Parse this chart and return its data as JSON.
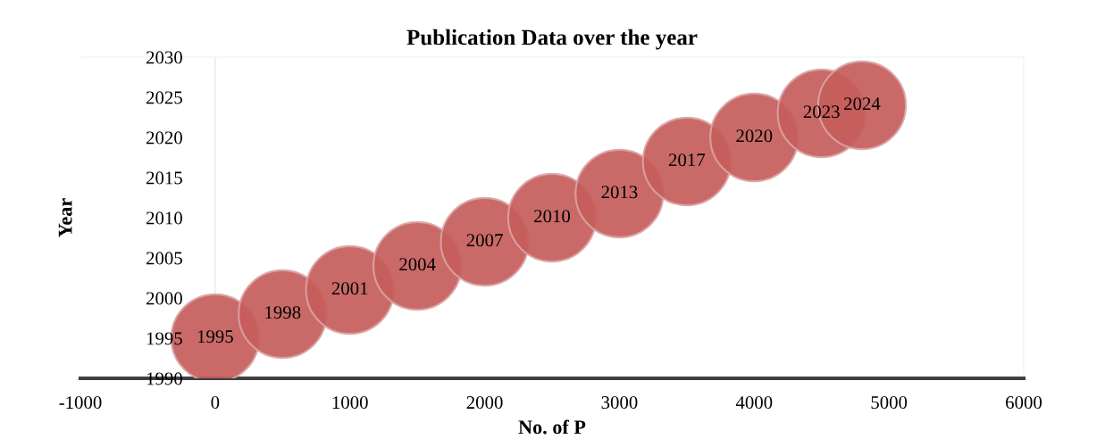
{
  "chart_data": {
    "type": "bubble",
    "title": "Publication Data over the year",
    "xlabel": "No. of P",
    "ylabel": "Year",
    "x": [
      0,
      500,
      1000,
      1500,
      2000,
      2500,
      3000,
      3500,
      4000,
      4500,
      4800
    ],
    "values": [
      1995,
      1998,
      2001,
      2004,
      2007,
      2010,
      2013,
      2017,
      2020,
      2023,
      2024
    ],
    "sizes": [
      1,
      1,
      1,
      1,
      1,
      1,
      1,
      1,
      1,
      1,
      1
    ],
    "color": "#c65d5b",
    "data_labels": true,
    "xlim": [
      -1000,
      6000
    ],
    "xticks": [
      -1000,
      0,
      1000,
      2000,
      3000,
      4000,
      5000,
      6000
    ],
    "ylim": [
      1990,
      2030
    ],
    "yticks": [
      1990,
      1995,
      2000,
      2005,
      2010,
      2015,
      2020,
      2025,
      2030
    ],
    "grid": false,
    "legend": false
  }
}
